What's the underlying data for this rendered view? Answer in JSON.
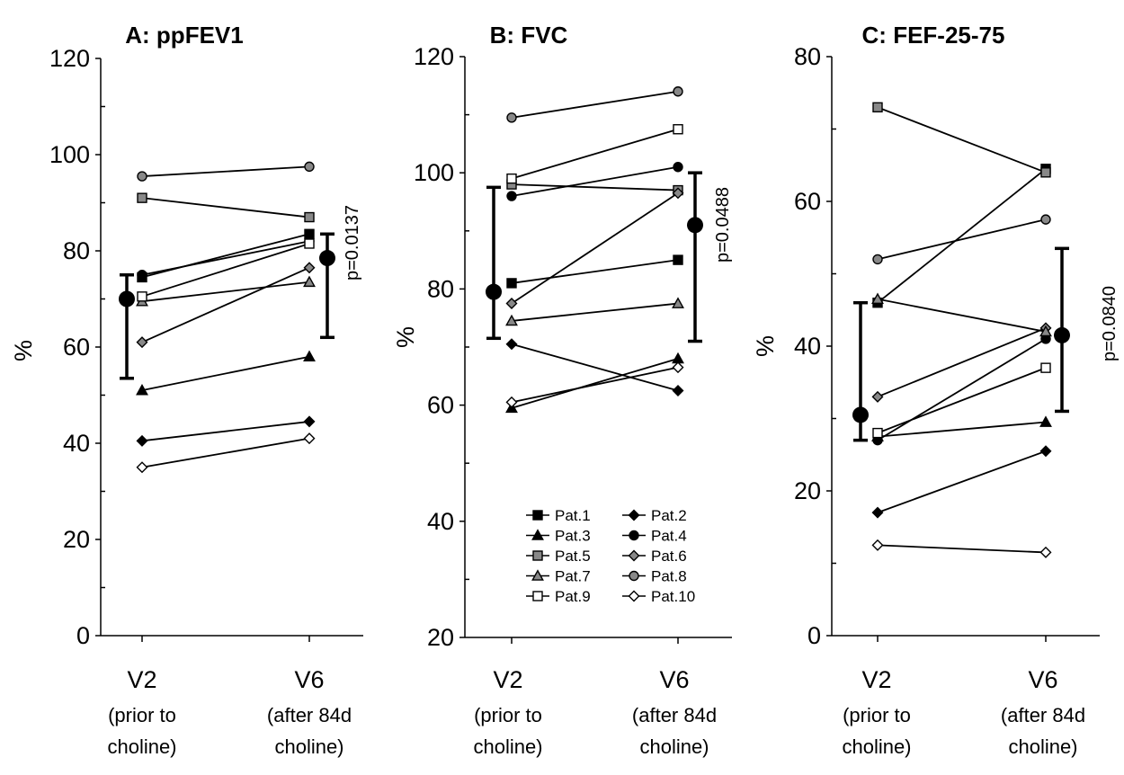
{
  "chart_data": [
    {
      "type": "line",
      "title": "A: ppFEV1",
      "ylabel": "%",
      "ylim": [
        0,
        120
      ],
      "yticks": [
        0,
        20,
        40,
        60,
        80,
        100,
        120
      ],
      "categories": [
        {
          "label": "V2",
          "sub": [
            "(prior to",
            "choline)"
          ]
        },
        {
          "label": "V6",
          "sub": [
            "(after 84d",
            "choline)"
          ]
        }
      ],
      "series": [
        {
          "name": "Pat.1",
          "values": [
            74.5,
            83.5
          ]
        },
        {
          "name": "Pat.2",
          "values": [
            40.5,
            44.5
          ]
        },
        {
          "name": "Pat.3",
          "values": [
            51,
            58
          ]
        },
        {
          "name": "Pat.4",
          "values": [
            75,
            82
          ]
        },
        {
          "name": "Pat.5",
          "values": [
            91,
            87
          ]
        },
        {
          "name": "Pat.6",
          "values": [
            61,
            76.5
          ]
        },
        {
          "name": "Pat.7",
          "values": [
            69.5,
            73.5
          ]
        },
        {
          "name": "Pat.8",
          "values": [
            95.5,
            97.5
          ]
        },
        {
          "name": "Pat.9",
          "values": [
            70.5,
            81.5
          ]
        },
        {
          "name": "Pat.10",
          "values": [
            35,
            41
          ]
        }
      ],
      "summary": {
        "v2": {
          "mean": 70,
          "low": 53.5,
          "high": 75
        },
        "v6": {
          "mean": 78.5,
          "low": 62,
          "high": 83.5
        }
      },
      "p_value": "p=0.0137"
    },
    {
      "type": "line",
      "title": "B: FVC",
      "ylabel": "%",
      "ylim": [
        20,
        120
      ],
      "yticks": [
        20,
        40,
        60,
        80,
        100,
        120
      ],
      "categories": [
        {
          "label": "V2",
          "sub": [
            "(prior to",
            "choline)"
          ]
        },
        {
          "label": "V6",
          "sub": [
            "(after 84d",
            "choline)"
          ]
        }
      ],
      "series": [
        {
          "name": "Pat.1",
          "values": [
            81,
            85
          ]
        },
        {
          "name": "Pat.2",
          "values": [
            70.5,
            62.5
          ]
        },
        {
          "name": "Pat.3",
          "values": [
            59.5,
            68
          ]
        },
        {
          "name": "Pat.4",
          "values": [
            96,
            101
          ]
        },
        {
          "name": "Pat.5",
          "values": [
            98,
            97
          ]
        },
        {
          "name": "Pat.6",
          "values": [
            77.5,
            96.5
          ]
        },
        {
          "name": "Pat.7",
          "values": [
            74.5,
            77.5
          ]
        },
        {
          "name": "Pat.8",
          "values": [
            109.5,
            114
          ]
        },
        {
          "name": "Pat.9",
          "values": [
            99,
            107.5
          ]
        },
        {
          "name": "Pat.10",
          "values": [
            60.5,
            66.5
          ]
        }
      ],
      "summary": {
        "v2": {
          "mean": 79.5,
          "low": 71.5,
          "high": 97.5
        },
        "v6": {
          "mean": 91,
          "low": 71,
          "high": 100
        }
      },
      "p_value": "p=0.0488"
    },
    {
      "type": "line",
      "title": "C: FEF-25-75",
      "ylabel": "%",
      "ylim": [
        0,
        80
      ],
      "yticks": [
        0,
        20,
        40,
        60,
        80
      ],
      "categories": [
        {
          "label": "V2",
          "sub": [
            "(prior to",
            "choline)"
          ]
        },
        {
          "label": "V6",
          "sub": [
            "(after 84d",
            "choline)"
          ]
        }
      ],
      "series": [
        {
          "name": "Pat.1",
          "values": [
            46,
            64.5
          ]
        },
        {
          "name": "Pat.2",
          "values": [
            17,
            25.5
          ]
        },
        {
          "name": "Pat.3",
          "values": [
            27.5,
            29.5
          ]
        },
        {
          "name": "Pat.4",
          "values": [
            27,
            41
          ]
        },
        {
          "name": "Pat.5",
          "values": [
            73,
            64
          ]
        },
        {
          "name": "Pat.6",
          "values": [
            33,
            42.5
          ]
        },
        {
          "name": "Pat.7",
          "values": [
            46.5,
            42
          ]
        },
        {
          "name": "Pat.8",
          "values": [
            52,
            57.5
          ]
        },
        {
          "name": "Pat.9",
          "values": [
            28,
            37
          ]
        },
        {
          "name": "Pat.10",
          "values": [
            12.5,
            11.5
          ]
        }
      ],
      "summary": {
        "v2": {
          "mean": 30.5,
          "low": 27,
          "high": 46
        },
        "v6": {
          "mean": 41.5,
          "low": 31,
          "high": 53.5
        }
      },
      "p_value": "p=0.0840"
    }
  ],
  "legend": {
    "placement": "inside panel B, bottom",
    "items": [
      {
        "name": "Pat.1",
        "marker": "square",
        "fill": "#000000"
      },
      {
        "name": "Pat.2",
        "marker": "diamond",
        "fill": "#000000"
      },
      {
        "name": "Pat.3",
        "marker": "triangle",
        "fill": "#000000"
      },
      {
        "name": "Pat.4",
        "marker": "circle",
        "fill": "#000000"
      },
      {
        "name": "Pat.5",
        "marker": "square",
        "fill": "#888888"
      },
      {
        "name": "Pat.6",
        "marker": "diamond",
        "fill": "#888888"
      },
      {
        "name": "Pat.7",
        "marker": "triangle",
        "fill": "#888888"
      },
      {
        "name": "Pat.8",
        "marker": "circle",
        "fill": "#888888"
      },
      {
        "name": "Pat.9",
        "marker": "square",
        "fill": "#ffffff"
      },
      {
        "name": "Pat.10",
        "marker": "diamond",
        "fill": "#ffffff"
      }
    ]
  }
}
